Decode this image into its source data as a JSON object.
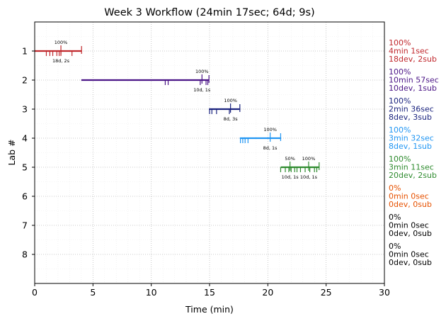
{
  "chart_data": {
    "type": "timeline",
    "title": "Week 3 Workflow (24min 17sec; 64d; 9s)",
    "xlabel": "Time (min)",
    "ylabel": "Lab #",
    "xlim": [
      0,
      30
    ],
    "ylim": [
      9,
      0
    ],
    "xticks": [
      "0",
      "5",
      "10",
      "15",
      "20",
      "25",
      "30"
    ],
    "yticks": [
      "1",
      "2",
      "3",
      "4",
      "5",
      "6",
      "7",
      "8"
    ],
    "grid": true,
    "labs": [
      {
        "lab": 1,
        "color": "#c0282d",
        "start": 0,
        "end": 4.02,
        "marks": [
          1.0,
          1.3,
          1.55,
          1.9,
          2.1,
          2.25,
          3.2
        ],
        "milestones": [
          {
            "x": 2.25,
            "pct": "100%",
            "tag": "18d, 2s"
          }
        ],
        "summary": [
          "100%",
          "4min 1sec",
          "18dev, 2sub"
        ]
      },
      {
        "lab": 2,
        "color": "#4a1486",
        "start": 4.0,
        "end": 14.95,
        "marks": [
          11.2,
          11.45,
          14.2,
          14.7,
          14.85
        ],
        "milestones": [
          {
            "x": 14.35,
            "pct": "100%",
            "tag": "10d, 1s"
          }
        ],
        "summary": [
          "100%",
          "10min 57sec",
          "10dev, 1sub"
        ]
      },
      {
        "lab": 3,
        "color": "#1a237e",
        "start": 14.95,
        "end": 17.6,
        "marks": [
          15.0,
          15.2,
          15.6,
          16.7
        ],
        "milestones": [
          {
            "x": 16.8,
            "pct": "100%",
            "tag": "8d, 3s"
          }
        ],
        "summary": [
          "100%",
          "2min 36sec",
          "8dev, 3sub"
        ]
      },
      {
        "lab": 4,
        "color": "#2196f3",
        "start": 17.6,
        "end": 21.1,
        "marks": [
          17.65,
          17.85,
          18.05,
          18.3
        ],
        "milestones": [
          {
            "x": 20.2,
            "pct": "100%",
            "tag": "8d, 1s"
          }
        ],
        "summary": [
          "100%",
          "3min 32sec",
          "8dev, 1sub"
        ]
      },
      {
        "lab": 5,
        "color": "#2e8b2e",
        "start": 21.1,
        "end": 24.4,
        "marks": [
          21.1,
          21.5,
          21.8,
          22.0,
          22.3,
          22.5,
          22.8,
          23.2,
          23.6,
          24.0,
          24.2
        ],
        "milestones": [
          {
            "x": 21.9,
            "pct": "50%",
            "tag": "10d, 1s"
          },
          {
            "x": 23.5,
            "pct": "100%",
            "tag": "10d, 1s"
          }
        ],
        "summary": [
          "100%",
          "3min 11sec",
          "20dev, 2sub"
        ]
      },
      {
        "lab": 6,
        "color": "#e65100",
        "start": null,
        "end": null,
        "marks": [],
        "milestones": [],
        "summary": [
          "0%",
          "0min 0sec",
          "0dev, 0sub"
        ]
      },
      {
        "lab": 7,
        "color": "#000000",
        "start": null,
        "end": null,
        "marks": [],
        "milestones": [],
        "summary": [
          "0%",
          "0min 0sec",
          "0dev, 0sub"
        ]
      },
      {
        "lab": 8,
        "color": "#000000",
        "start": null,
        "end": null,
        "marks": [],
        "milestones": [],
        "summary": [
          "0%",
          "0min 0sec",
          "0dev, 0sub"
        ]
      }
    ]
  }
}
